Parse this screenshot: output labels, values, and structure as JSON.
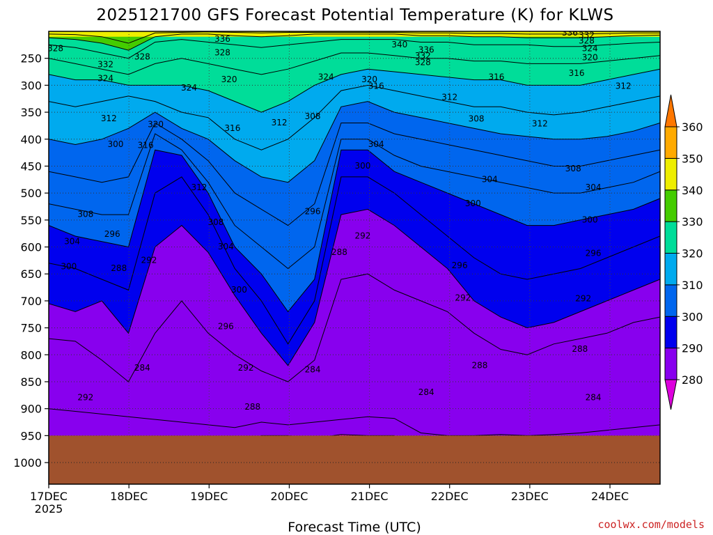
{
  "chart_data": {
    "type": "contour",
    "title": "2025121700 GFS Forecast Potential Temperature (K) for KLWS",
    "xlabel": "Forecast Time (UTC)",
    "ylabel": "",
    "credit": "coolwx.com/models",
    "x_ticks": [
      "17DEC",
      "18DEC",
      "19DEC",
      "20DEC",
      "21DEC",
      "22DEC",
      "23DEC",
      "24DEC"
    ],
    "x_year": "2025",
    "x_tick_hours": [
      0,
      24,
      48,
      72,
      96,
      120,
      144,
      168
    ],
    "xlim_hours": [
      0,
      183
    ],
    "y_ticks": [
      250,
      300,
      350,
      400,
      450,
      500,
      550,
      600,
      650,
      700,
      750,
      800,
      850,
      900,
      950,
      1000
    ],
    "ylim_hPa": [
      200,
      1040
    ],
    "surface_pressure_hPa": 950,
    "colorbar": {
      "label_values": [
        360,
        350,
        340,
        330,
        320,
        310,
        300,
        290,
        280
      ],
      "levels": [
        280,
        290,
        300,
        310,
        320,
        330,
        340,
        350,
        360
      ],
      "colors": [
        "#dd00dd",
        "#8800ee",
        "#0000ee",
        "#0066ee",
        "#00aaee",
        "#00dd99",
        "#44cc00",
        "#eeee00",
        "#ffaa00",
        "#ff7700"
      ]
    },
    "contour_interval_K": 4,
    "isentropes": [
      {
        "theta": 280,
        "p": [
          1040,
          1040,
          1040,
          1040,
          1040,
          1040,
          1040,
          1040,
          950,
          950,
          955,
          948,
          950,
          950,
          1040,
          1040,
          1040,
          1040,
          1040,
          1040,
          1040,
          1040,
          1040,
          1040
        ]
      },
      {
        "theta": 284,
        "p": [
          900,
          905,
          910,
          915,
          920,
          925,
          930,
          935,
          925,
          930,
          925,
          920,
          915,
          918,
          945,
          950,
          950,
          948,
          950,
          948,
          945,
          940,
          935,
          930
        ]
      },
      {
        "theta": 288,
        "p": [
          770,
          775,
          810,
          850,
          760,
          700,
          760,
          800,
          830,
          850,
          810,
          660,
          650,
          680,
          700,
          720,
          760,
          790,
          800,
          780,
          770,
          760,
          740,
          730
        ]
      },
      {
        "theta": 292,
        "p": [
          705,
          720,
          700,
          760,
          600,
          560,
          610,
          690,
          760,
          820,
          740,
          540,
          530,
          560,
          600,
          640,
          700,
          730,
          750,
          740,
          720,
          700,
          680,
          660
        ]
      },
      {
        "theta": 296,
        "p": [
          630,
          640,
          660,
          680,
          500,
          470,
          540,
          640,
          700,
          780,
          700,
          470,
          470,
          500,
          540,
          580,
          620,
          650,
          660,
          650,
          640,
          620,
          600,
          580
        ]
      },
      {
        "theta": 300,
        "p": [
          560,
          580,
          590,
          600,
          420,
          430,
          500,
          600,
          650,
          720,
          660,
          420,
          420,
          460,
          480,
          500,
          520,
          540,
          560,
          560,
          550,
          540,
          530,
          510
        ]
      },
      {
        "theta": 304,
        "p": [
          520,
          530,
          540,
          540,
          390,
          420,
          480,
          560,
          600,
          640,
          600,
          400,
          400,
          430,
          450,
          460,
          470,
          480,
          490,
          500,
          500,
          490,
          480,
          460
        ]
      },
      {
        "theta": 308,
        "p": [
          460,
          470,
          480,
          470,
          370,
          400,
          440,
          500,
          530,
          560,
          520,
          370,
          370,
          390,
          400,
          410,
          420,
          430,
          440,
          450,
          450,
          440,
          430,
          420
        ]
      },
      {
        "theta": 312,
        "p": [
          400,
          410,
          400,
          380,
          350,
          380,
          400,
          440,
          470,
          480,
          440,
          340,
          330,
          350,
          360,
          370,
          380,
          390,
          395,
          400,
          400,
          395,
          385,
          370
        ]
      },
      {
        "theta": 316,
        "p": [
          330,
          340,
          330,
          320,
          330,
          350,
          360,
          400,
          420,
          400,
          360,
          310,
          300,
          310,
          320,
          330,
          340,
          340,
          350,
          355,
          350,
          340,
          330,
          320
        ]
      },
      {
        "theta": 320,
        "p": [
          280,
          290,
          290,
          300,
          300,
          300,
          310,
          330,
          350,
          330,
          300,
          280,
          270,
          275,
          280,
          285,
          290,
          290,
          300,
          300,
          300,
          290,
          280,
          270
        ]
      },
      {
        "theta": 324,
        "p": [
          250,
          260,
          270,
          280,
          260,
          250,
          260,
          270,
          280,
          270,
          255,
          240,
          240,
          245,
          250,
          250,
          255,
          255,
          260,
          260,
          260,
          255,
          250,
          245
        ]
      },
      {
        "theta": 328,
        "p": [
          225,
          230,
          240,
          250,
          220,
          215,
          220,
          225,
          230,
          225,
          220,
          215,
          215,
          215,
          220,
          220,
          225,
          225,
          225,
          228,
          228,
          225,
          222,
          220
        ]
      },
      {
        "theta": 332,
        "p": [
          212,
          215,
          222,
          235,
          210,
          205,
          205,
          208,
          210,
          208,
          205,
          205,
          205,
          205,
          208,
          208,
          210,
          210,
          212,
          212,
          212,
          210,
          208,
          207
        ]
      },
      {
        "theta": 336,
        "p": [
          205,
          206,
          210,
          222,
          203,
          202,
          201,
          202,
          203,
          202,
          202,
          202,
          202,
          202,
          203,
          203,
          204,
          204,
          205,
          205,
          205,
          204,
          203,
          203
        ]
      }
    ],
    "labels": [
      {
        "text": "328",
        "t": 2,
        "p": 232
      },
      {
        "text": "332",
        "t": 17,
        "p": 262
      },
      {
        "text": "324",
        "t": 17,
        "p": 288
      },
      {
        "text": "328",
        "t": 28,
        "p": 248
      },
      {
        "text": "324",
        "t": 42,
        "p": 305
      },
      {
        "text": "336",
        "t": 52,
        "p": 215
      },
      {
        "text": "328",
        "t": 52,
        "p": 240
      },
      {
        "text": "320",
        "t": 54,
        "p": 290
      },
      {
        "text": "312",
        "t": 18,
        "p": 362
      },
      {
        "text": "320",
        "t": 32,
        "p": 373
      },
      {
        "text": "300",
        "t": 20,
        "p": 410
      },
      {
        "text": "316",
        "t": 29,
        "p": 412
      },
      {
        "text": "316",
        "t": 55,
        "p": 380
      },
      {
        "text": "312",
        "t": 69,
        "p": 370
      },
      {
        "text": "308",
        "t": 79,
        "p": 358
      },
      {
        "text": "324",
        "t": 83,
        "p": 285
      },
      {
        "text": "320",
        "t": 96,
        "p": 290
      },
      {
        "text": "316",
        "t": 98,
        "p": 302
      },
      {
        "text": "340",
        "t": 105,
        "p": 225
      },
      {
        "text": "336",
        "t": 113,
        "p": 235
      },
      {
        "text": "332",
        "t": 112,
        "p": 246
      },
      {
        "text": "328",
        "t": 112,
        "p": 258
      },
      {
        "text": "312",
        "t": 120,
        "p": 323
      },
      {
        "text": "308",
        "t": 128,
        "p": 363
      },
      {
        "text": "304",
        "t": 98,
        "p": 410
      },
      {
        "text": "300",
        "t": 94,
        "p": 450
      },
      {
        "text": "296",
        "t": 79,
        "p": 535
      },
      {
        "text": "292",
        "t": 94,
        "p": 580
      },
      {
        "text": "288",
        "t": 87,
        "p": 610
      },
      {
        "text": "308",
        "t": 11,
        "p": 540
      },
      {
        "text": "304",
        "t": 7,
        "p": 590
      },
      {
        "text": "300",
        "t": 6,
        "p": 637
      },
      {
        "text": "296",
        "t": 19,
        "p": 577
      },
      {
        "text": "292",
        "t": 30,
        "p": 625
      },
      {
        "text": "288",
        "t": 21,
        "p": 640
      },
      {
        "text": "312",
        "t": 45,
        "p": 490
      },
      {
        "text": "308",
        "t": 50,
        "p": 555
      },
      {
        "text": "304",
        "t": 53,
        "p": 600
      },
      {
        "text": "300",
        "t": 57,
        "p": 680
      },
      {
        "text": "296",
        "t": 53,
        "p": 748
      },
      {
        "text": "292",
        "t": 59,
        "p": 825
      },
      {
        "text": "288",
        "t": 61,
        "p": 897
      },
      {
        "text": "284",
        "t": 28,
        "p": 825
      },
      {
        "text": "292",
        "t": 11,
        "p": 880
      },
      {
        "text": "284",
        "t": 79,
        "p": 828
      },
      {
        "text": "284",
        "t": 113,
        "p": 870
      },
      {
        "text": "288",
        "t": 129,
        "p": 820
      },
      {
        "text": "296",
        "t": 123,
        "p": 635
      },
      {
        "text": "292",
        "t": 124,
        "p": 695
      },
      {
        "text": "304",
        "t": 132,
        "p": 475
      },
      {
        "text": "300",
        "t": 127,
        "p": 520
      },
      {
        "text": "312",
        "t": 147,
        "p": 372
      },
      {
        "text": "316",
        "t": 134,
        "p": 285
      },
      {
        "text": "316",
        "t": 158,
        "p": 278
      },
      {
        "text": "312",
        "t": 172,
        "p": 302
      },
      {
        "text": "320",
        "t": 162,
        "p": 249
      },
      {
        "text": "324",
        "t": 162,
        "p": 232
      },
      {
        "text": "328",
        "t": 161,
        "p": 218
      },
      {
        "text": "332",
        "t": 161,
        "p": 208
      },
      {
        "text": "336",
        "t": 156,
        "p": 203
      },
      {
        "text": "308",
        "t": 157,
        "p": 455
      },
      {
        "text": "304",
        "t": 163,
        "p": 490
      },
      {
        "text": "300",
        "t": 162,
        "p": 550
      },
      {
        "text": "296",
        "t": 163,
        "p": 612
      },
      {
        "text": "292",
        "t": 160,
        "p": 696
      },
      {
        "text": "288",
        "t": 159,
        "p": 790
      },
      {
        "text": "284",
        "t": 163,
        "p": 880
      }
    ]
  }
}
